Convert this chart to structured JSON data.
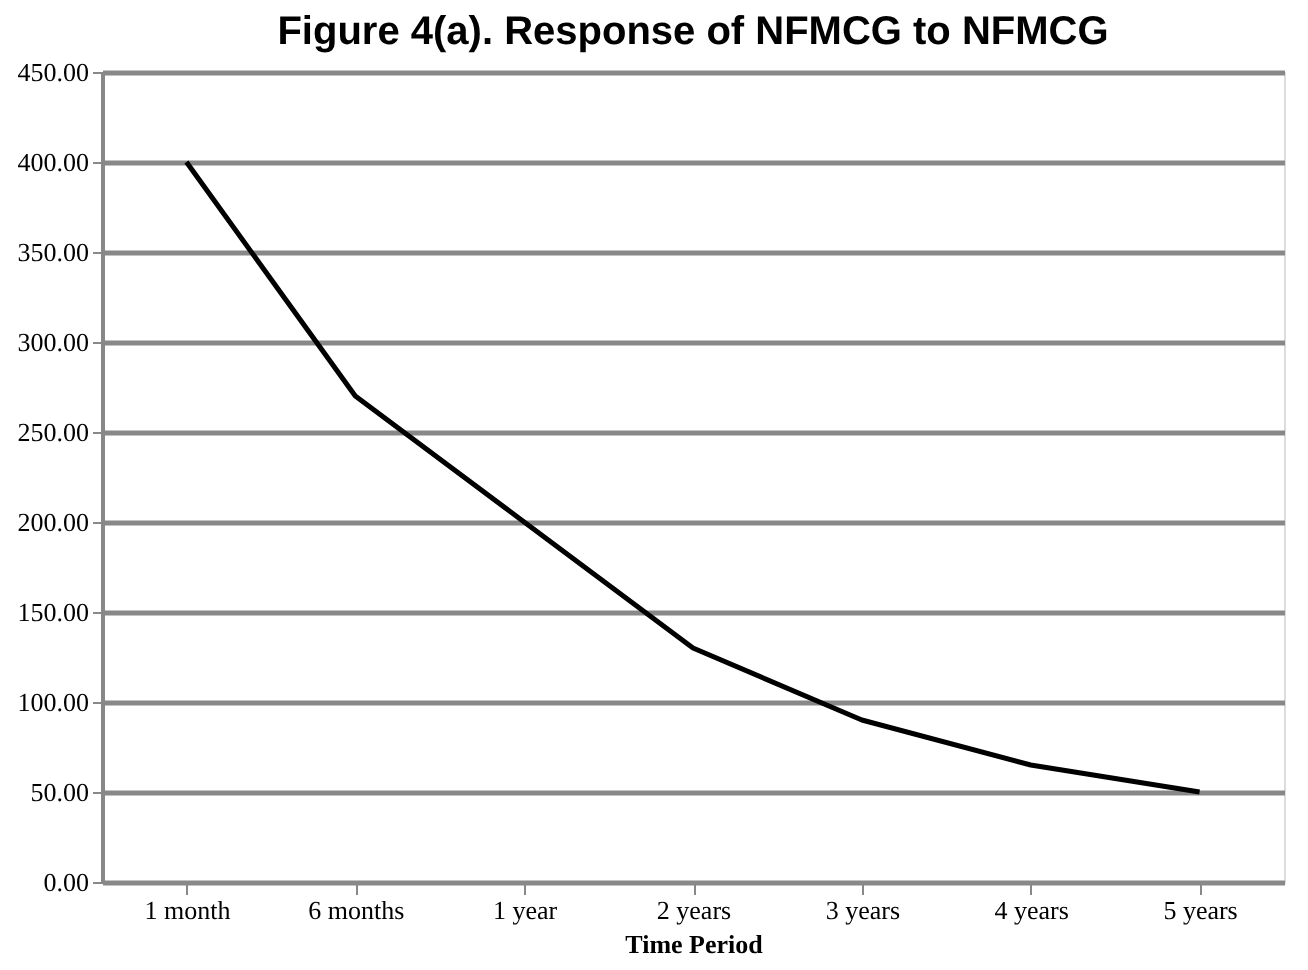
{
  "chart_data": {
    "type": "line",
    "title": "Figure 4(a). Response of NFMCG to NFMCG",
    "xlabel": "Time Period",
    "categories": [
      "1 month",
      "6 months",
      "1 year",
      "2 years",
      "3 years",
      "4 years",
      "5 years"
    ],
    "series": [
      {
        "color": "#000000",
        "values": [
          400,
          270,
          200,
          130,
          90,
          65,
          50
        ]
      }
    ],
    "ylim": [
      0,
      450
    ],
    "yticks": [
      {
        "value": 0,
        "label": "0.00"
      },
      {
        "value": 50,
        "label": "50.00"
      },
      {
        "value": 100,
        "label": "100.00"
      },
      {
        "value": 150,
        "label": "150.00"
      },
      {
        "value": 200,
        "label": "200.00"
      },
      {
        "value": 250,
        "label": "250.00"
      },
      {
        "value": 300,
        "label": "300.00"
      },
      {
        "value": 350,
        "label": "350.00"
      },
      {
        "value": 400,
        "label": "400.00"
      },
      {
        "value": 450,
        "label": "450.00"
      }
    ],
    "grid": "y",
    "marker": "none",
    "line_style": "solid"
  }
}
